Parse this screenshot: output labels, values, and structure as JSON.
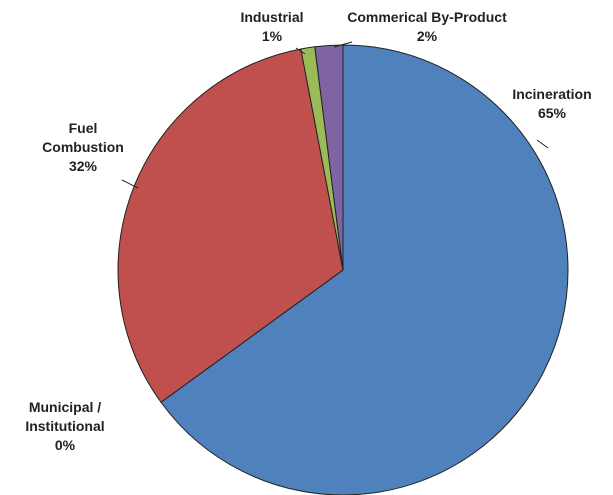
{
  "chart_data": {
    "type": "pie",
    "categories": [
      "Incineration",
      "Municipal / Institutional",
      "Fuel Combustion",
      "Industrial",
      "Commerical By-Product"
    ],
    "values": [
      65,
      0,
      32,
      1,
      2
    ],
    "value_labels": [
      "65%",
      "0%",
      "32%",
      "1%",
      "2%"
    ],
    "colors": [
      "#4f81bd",
      "#4bacc6",
      "#c0504d",
      "#9bbb59",
      "#8064a2"
    ]
  }
}
